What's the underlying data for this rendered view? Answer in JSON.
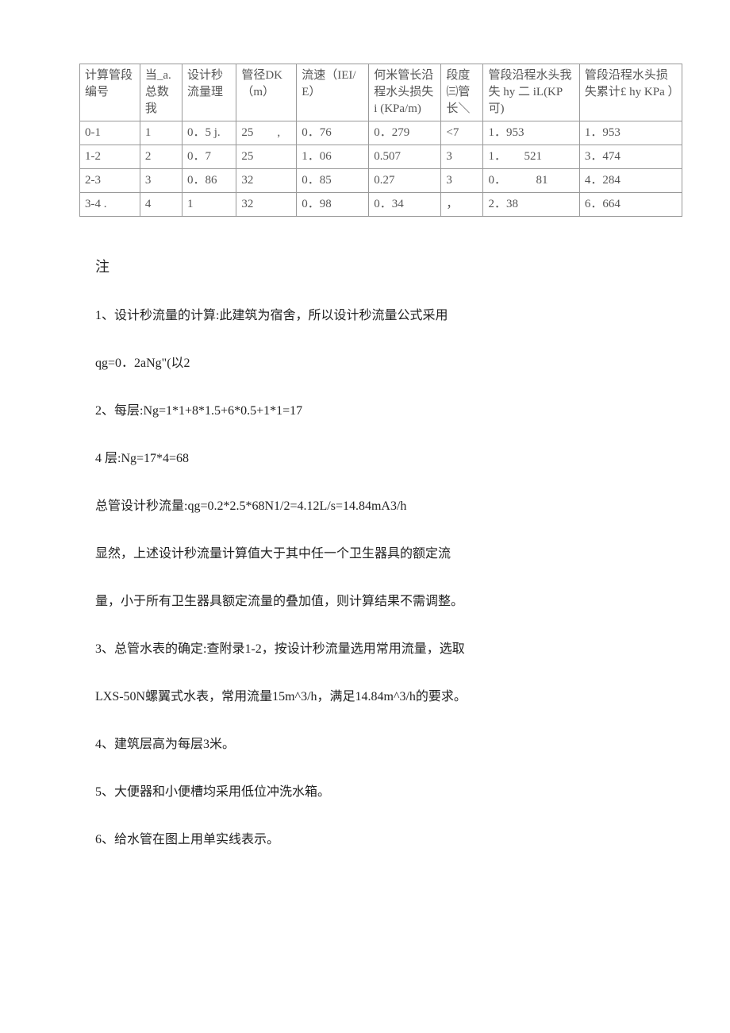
{
  "table": {
    "headers": [
      "计算管段编号",
      "当_a. 总数我",
      "设计秒流量理",
      "管径DK（m）",
      "流速（IEI/E）",
      "何米管长沿程水头损失 i (KPa/m)",
      "段度㈢管长＼",
      "管段沿程水头我失 hy 二 iL(KP 可)",
      "管段沿程水头损失累计£ hy KPa ）"
    ],
    "rows": [
      [
        "0-1",
        "1",
        "0．5 j.",
        "25　　,",
        "0．76",
        "0．279",
        "<7",
        "1．953",
        "1．953"
      ],
      [
        "1-2",
        "2",
        "0．7",
        "25",
        "1．06",
        "0.507",
        "3",
        "1．　　521",
        "3．474"
      ],
      [
        "2-3",
        "3",
        "0．86",
        "32",
        "0．85",
        "0.27",
        "3",
        "0．　　　81",
        "4．284"
      ],
      [
        "3-4  .",
        "4",
        "1",
        "32",
        "0．98",
        "0．34",
        "，",
        "2．38",
        "6．664"
      ]
    ],
    "col_widths": [
      "10%",
      "7%",
      "9%",
      "10%",
      "12%",
      "12%",
      "7%",
      "16%",
      "17%"
    ],
    "border_color": "#999999",
    "text_color": "#555555",
    "background_color": "#ffffff"
  },
  "notes": {
    "title": "注",
    "items": [
      "1、设计秒流量的计算:此建筑为宿舍，所以设计秒流量公式采用",
      "qg=0．2aNg\"(以2",
      "2、每层:Ng=1*1+8*1.5+6*0.5+1*1=17",
      "4 层:Ng=17*4=68",
      "总管设计秒流量:qg=0.2*2.5*68N1/2=4.12L/s=14.84mA3/h",
      "显然，上述设计秒流量计算值大于其中任一个卫生器具的额定流",
      "量，小于所有卫生器具额定流量的叠加值，则计算结果不需调整。",
      "3、总管水表的确定:查附录1-2，按设计秒流量选用常用流量，选取",
      "LXS-50N螺翼式水表，常用流量15m^3/h，满足14.84m^3/h的要求。",
      "4、建筑层高为每层3米。",
      "5、大便器和小便槽均采用低位冲洗水箱。",
      "6、给水管在图上用单实线表示。"
    ]
  }
}
